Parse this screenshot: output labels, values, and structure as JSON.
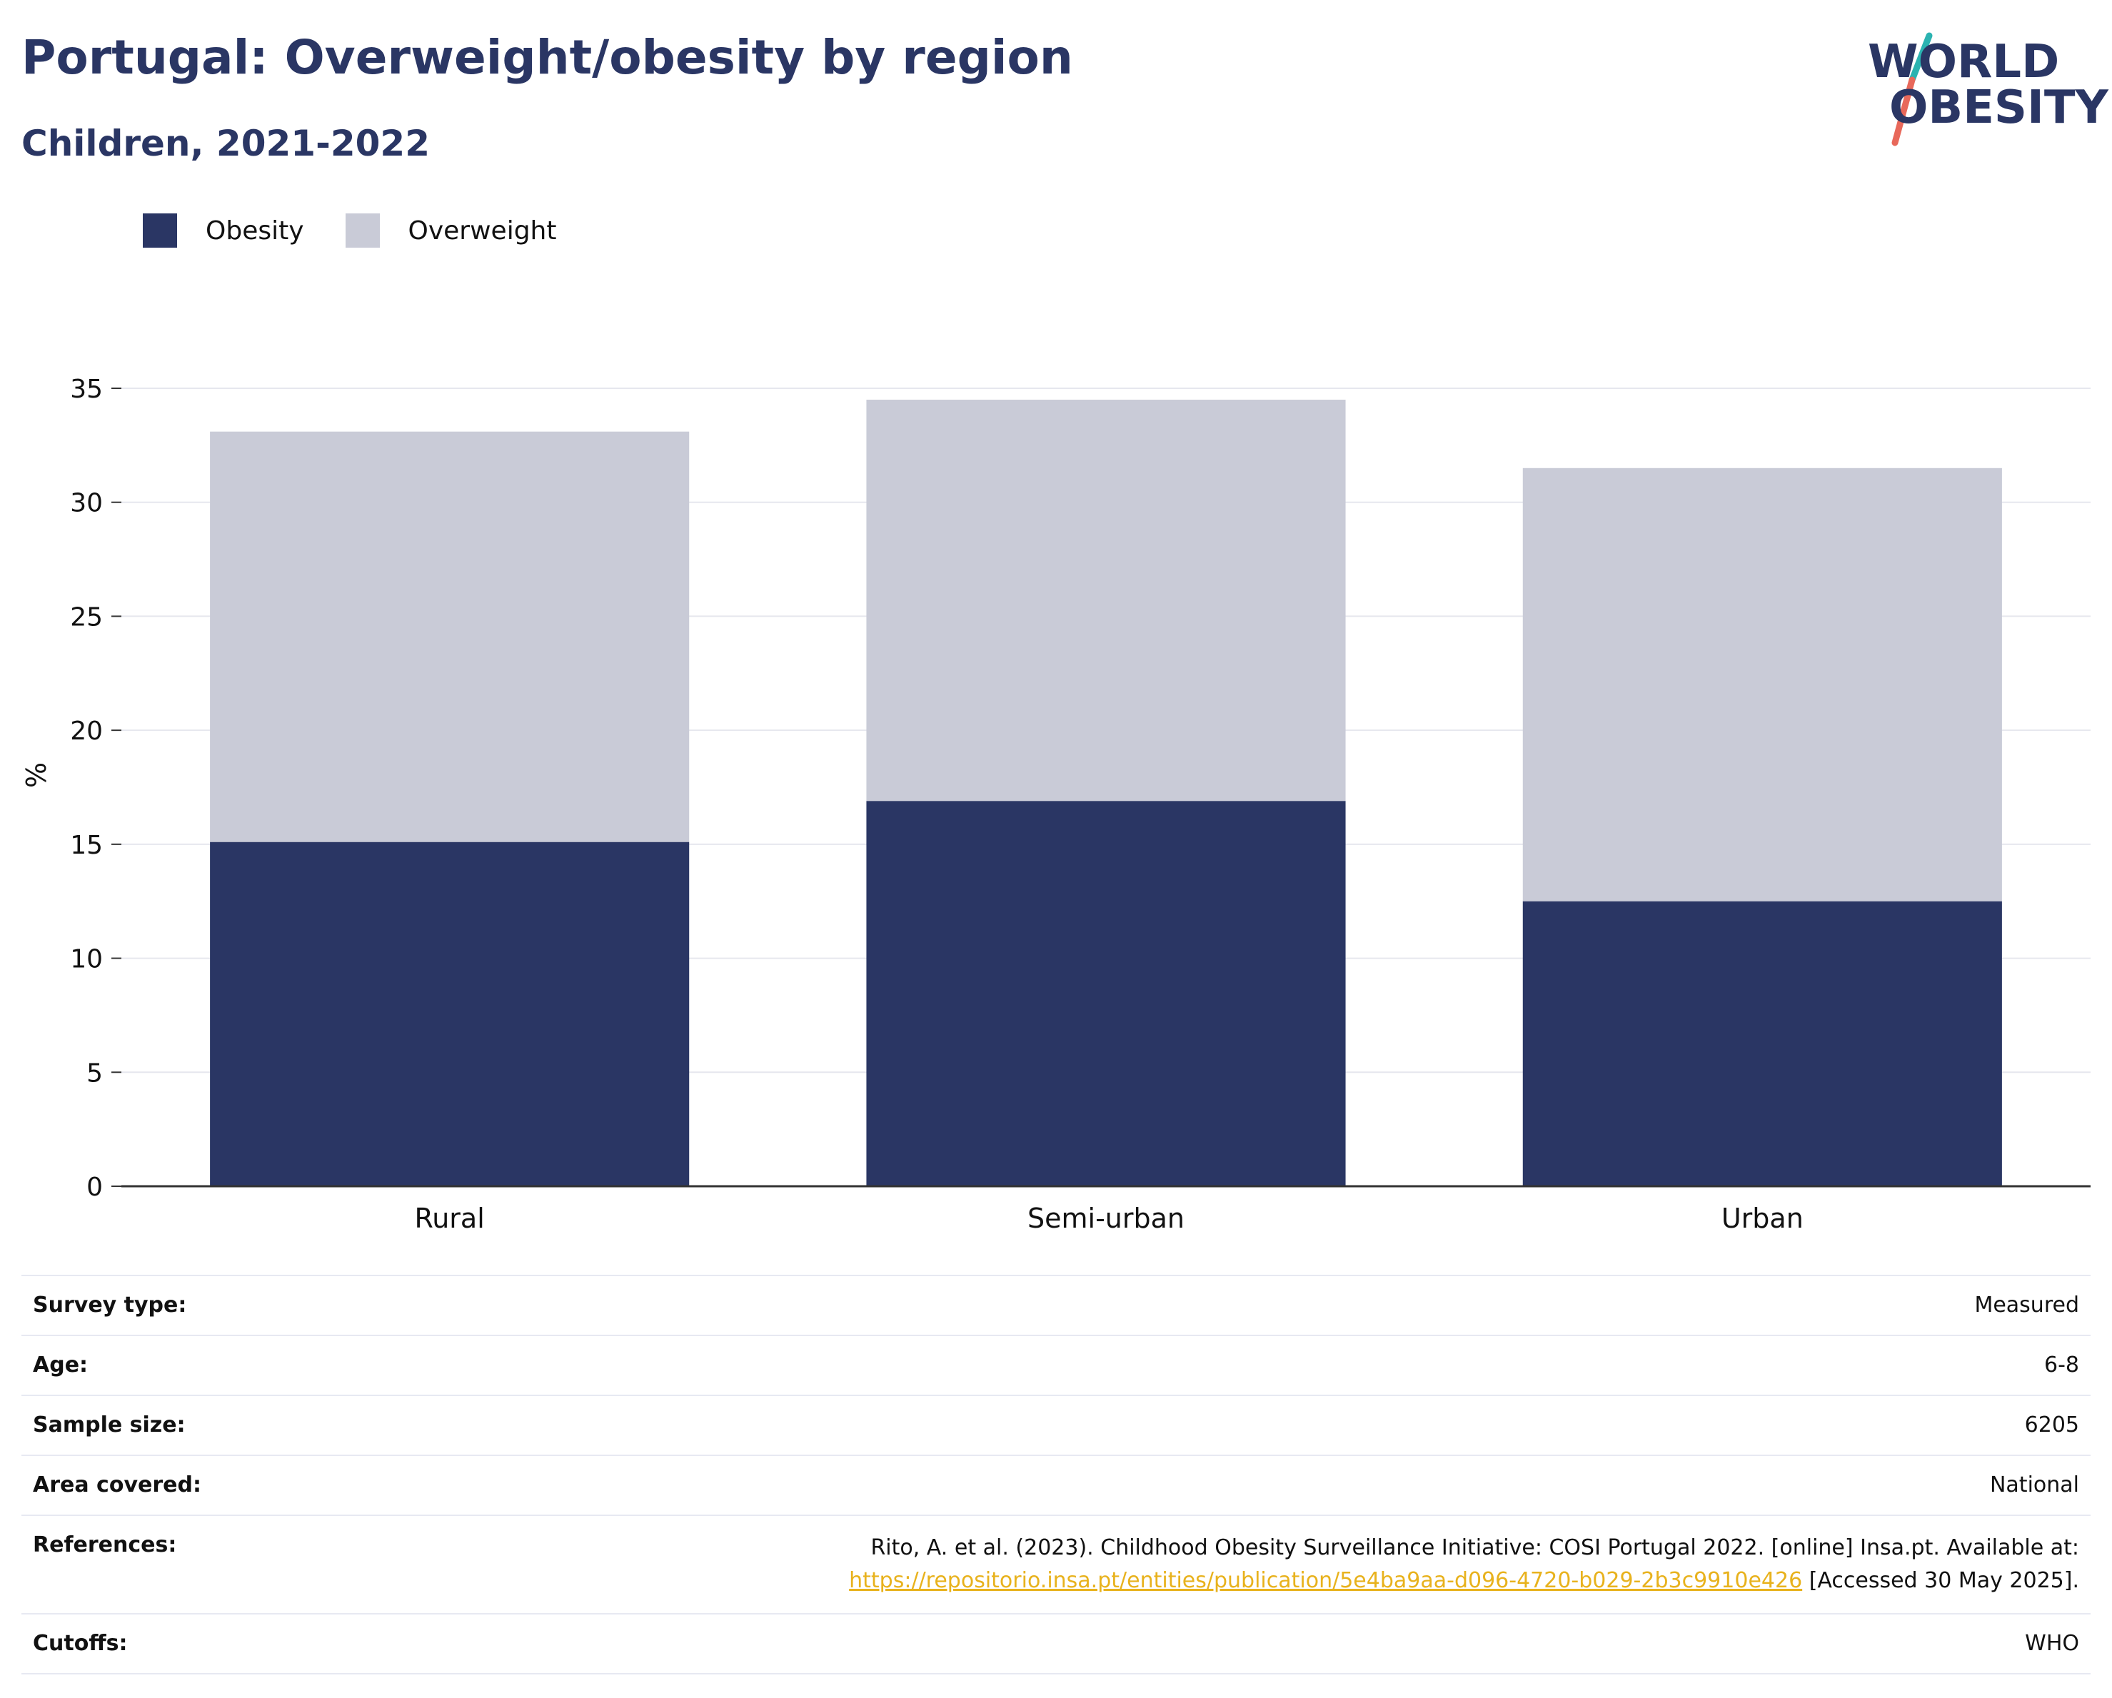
{
  "header": {
    "title": "Portugal: Overweight/obesity by region",
    "subtitle": "Children, 2021-2022"
  },
  "logo": {
    "line1": "WORLD",
    "line2": "OBESITY",
    "colors": {
      "text": "#2a3664",
      "slash_top": "#2bb3b1",
      "slash_bottom": "#e8685a"
    }
  },
  "legend": [
    {
      "label": "Obesity",
      "color": "#2a3664"
    },
    {
      "label": "Overweight",
      "color": "#c9cbd7"
    }
  ],
  "chart_data": {
    "type": "bar",
    "stacked": true,
    "categories": [
      "Rural",
      "Semi-urban",
      "Urban"
    ],
    "series": [
      {
        "name": "Obesity",
        "values": [
          15.1,
          16.9,
          12.5
        ],
        "color": "#2a3664"
      },
      {
        "name": "Overweight",
        "values": [
          18.0,
          17.6,
          19.0
        ],
        "color": "#c9cbd7"
      }
    ],
    "title": "Portugal: Overweight/obesity by region",
    "subtitle": "Children, 2021-2022",
    "xlabel": "",
    "ylabel": "%",
    "ylim": [
      0,
      35
    ],
    "yticks": [
      0,
      5,
      10,
      15,
      20,
      25,
      30,
      35
    ],
    "grid": true,
    "legend_position": "top-left"
  },
  "info": {
    "survey_type": {
      "label": "Survey type:",
      "value": "Measured"
    },
    "age": {
      "label": "Age:",
      "value": "6-8"
    },
    "sample_size": {
      "label": "Sample size:",
      "value": "6205"
    },
    "area_covered": {
      "label": "Area covered:",
      "value": "National"
    },
    "references": {
      "label": "References:",
      "text_before": "Rito, A. et al. (2023). Childhood Obesity Surveillance Initiative: COSI Portugal 2022. [online] Insa.pt. Available at:",
      "link": "https://repositorio.insa.pt/entities/publication/5e4ba9aa-d096-4720-b029-2b3c9910e426",
      "text_after": " [Accessed 30 May 2025]."
    },
    "cutoffs": {
      "label": "Cutoffs:",
      "value": "WHO"
    }
  }
}
